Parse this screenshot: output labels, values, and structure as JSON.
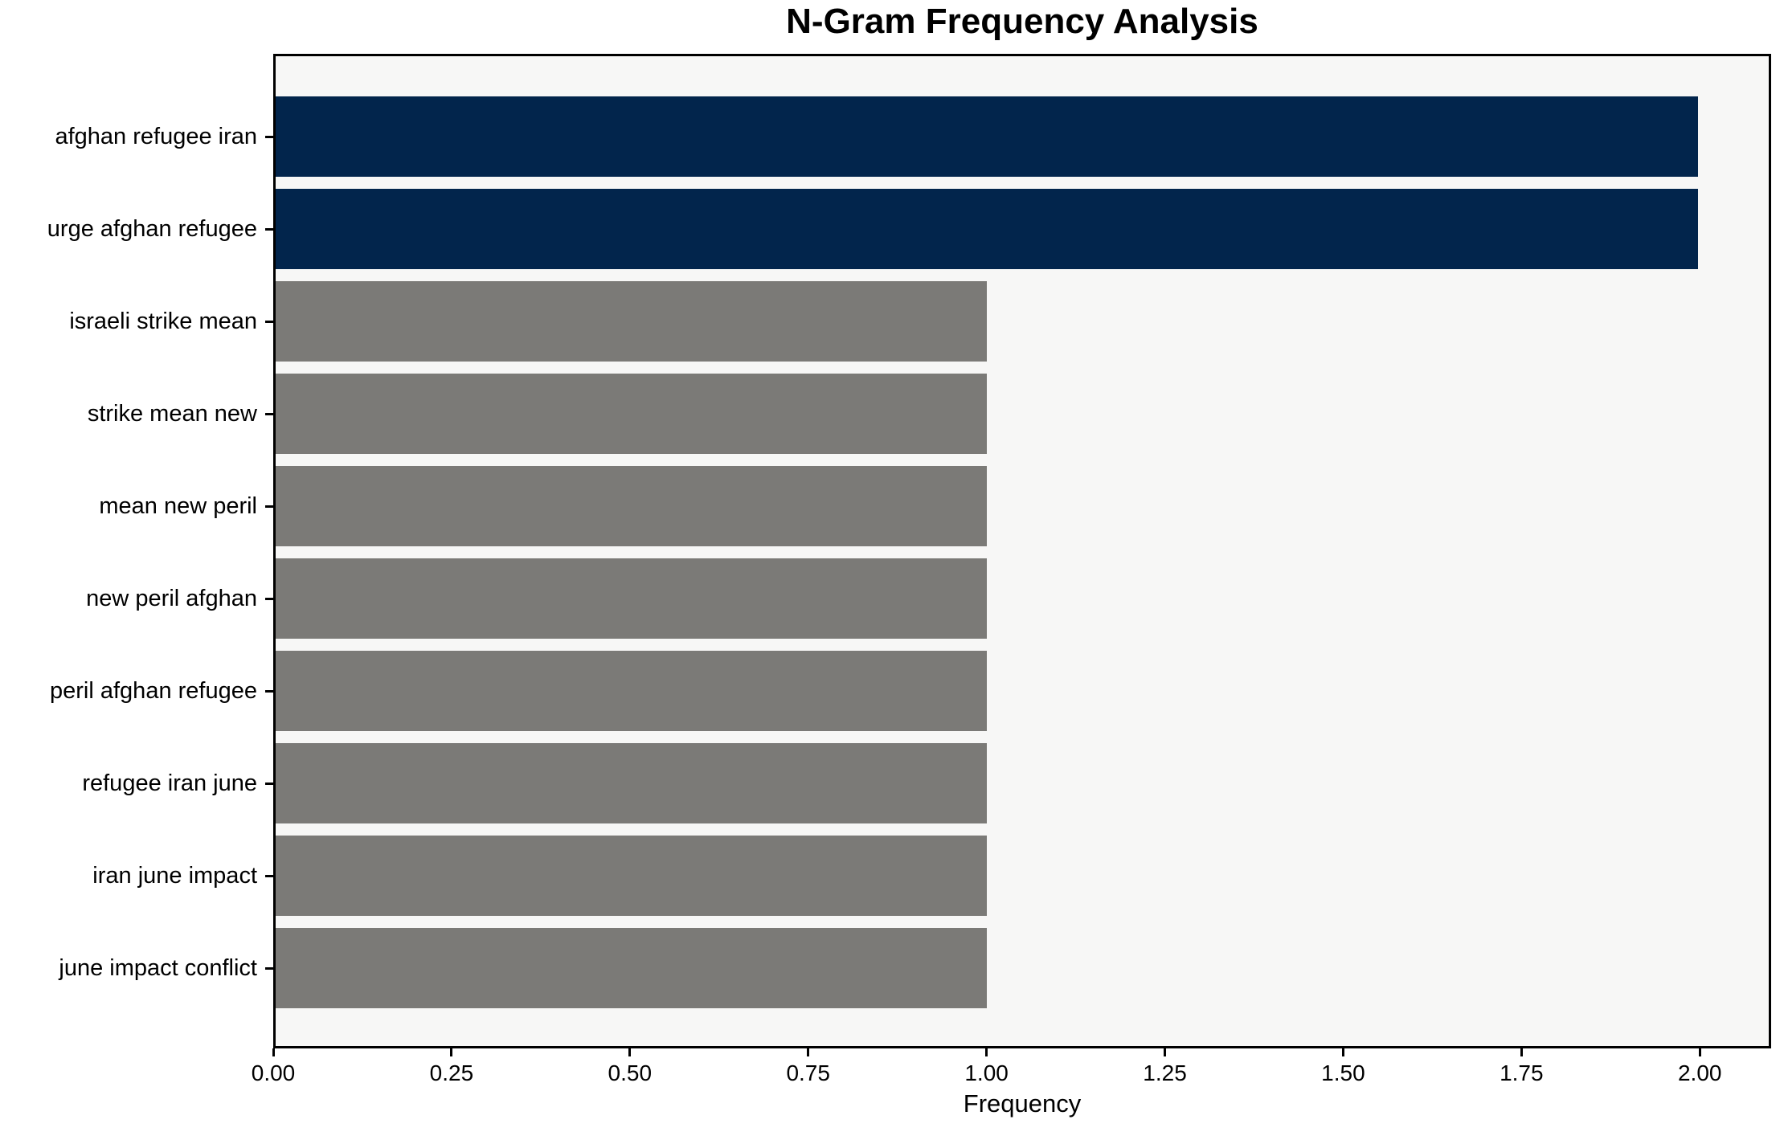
{
  "chart_data": {
    "type": "bar",
    "orientation": "horizontal",
    "title": "N-Gram Frequency Analysis",
    "xlabel": "Frequency",
    "ylabel": "",
    "categories": [
      "afghan refugee iran",
      "urge afghan refugee",
      "israeli strike mean",
      "strike mean new",
      "mean new peril",
      "new peril afghan",
      "peril afghan refugee",
      "refugee iran june",
      "iran june impact",
      "june impact conflict"
    ],
    "values": [
      2,
      2,
      1,
      1,
      1,
      1,
      1,
      1,
      1,
      1
    ],
    "bar_colors": [
      "#02254C",
      "#02254C",
      "#7B7A77",
      "#7B7A77",
      "#7B7A77",
      "#7B7A77",
      "#7B7A77",
      "#7B7A77",
      "#7B7A77",
      "#7B7A77"
    ],
    "highlight_color": "#02254C",
    "default_color": "#7B7A77",
    "plot_background": "#F7F7F6",
    "frame_color": "#000000",
    "xlim": [
      0,
      2.1
    ],
    "xtick_values": [
      0,
      0.25,
      0.5,
      0.75,
      1.0,
      1.25,
      1.5,
      1.75,
      2.0
    ],
    "xtick_labels": [
      "0.00",
      "0.25",
      "0.50",
      "0.75",
      "1.00",
      "1.25",
      "1.50",
      "1.75",
      "2.00"
    ],
    "grid": false,
    "legend": null
  }
}
